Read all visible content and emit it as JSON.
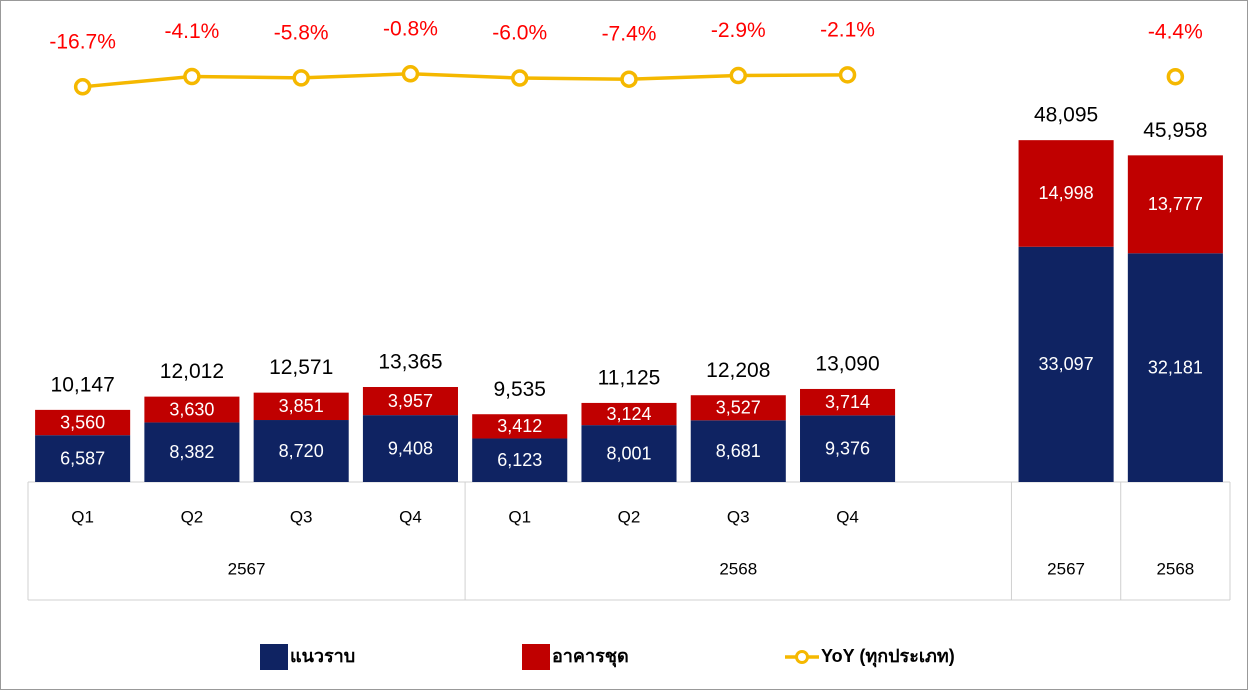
{
  "chart_data": {
    "type": "stacked_bar_line",
    "categories": [
      "Q1",
      "Q2",
      "Q3",
      "Q4",
      "Q1",
      "Q2",
      "Q3",
      "Q4",
      null,
      null,
      null
    ],
    "groups": [
      {
        "label": "2567",
        "count": 4
      },
      {
        "label": "2568",
        "count": 5
      },
      {
        "label": "2567",
        "count": 1
      },
      {
        "label": "2568",
        "count": 1
      }
    ],
    "ylim": [
      0,
      65000
    ],
    "y2lim": [
      -500,
      65
    ],
    "series": [
      {
        "name": "แนวราบ",
        "color": "#0f2362",
        "values": [
          6587,
          8382,
          8720,
          9408,
          6123,
          8001,
          8681,
          9376,
          null,
          33097,
          32181
        ],
        "value_labels": [
          "6,587",
          "8,382",
          "8,720",
          "9,408",
          "6,123",
          "8,001",
          "8,681",
          "9,376",
          null,
          "33,097",
          "32,181"
        ]
      },
      {
        "name": "อาคารชุด",
        "color": "#c00000",
        "values": [
          3560,
          3630,
          3851,
          3957,
          3412,
          3124,
          3527,
          3714,
          null,
          14998,
          13777
        ],
        "value_labels": [
          "3,560",
          "3,630",
          "3,851",
          "3,957",
          "3,412",
          "3,124",
          "3,527",
          "3,714",
          null,
          "14,998",
          "13,777"
        ]
      },
      {
        "name": "YoY (ทุกประเภท)",
        "color": "#f5b800",
        "axis": "y2",
        "values": [
          -16.7,
          -4.1,
          -5.8,
          -0.8,
          -6.0,
          -7.4,
          -2.9,
          -2.1,
          null,
          null,
          -4.4
        ],
        "value_labels": [
          "-16.7%",
          "-4.1%",
          "-5.8%",
          "-0.8%",
          "-6.0%",
          "-7.4%",
          "-2.9%",
          "-2.1%",
          null,
          null,
          "-4.4%"
        ]
      }
    ],
    "totals": [
      10147,
      12012,
      12571,
      13365,
      9535,
      11125,
      12208,
      13090,
      null,
      48095,
      45958
    ],
    "total_labels": [
      "10,147",
      "12,012",
      "12,571",
      "13,365",
      "9,535",
      "11,125",
      "12,208",
      "13,090",
      null,
      "48,095",
      "45,958"
    ]
  }
}
